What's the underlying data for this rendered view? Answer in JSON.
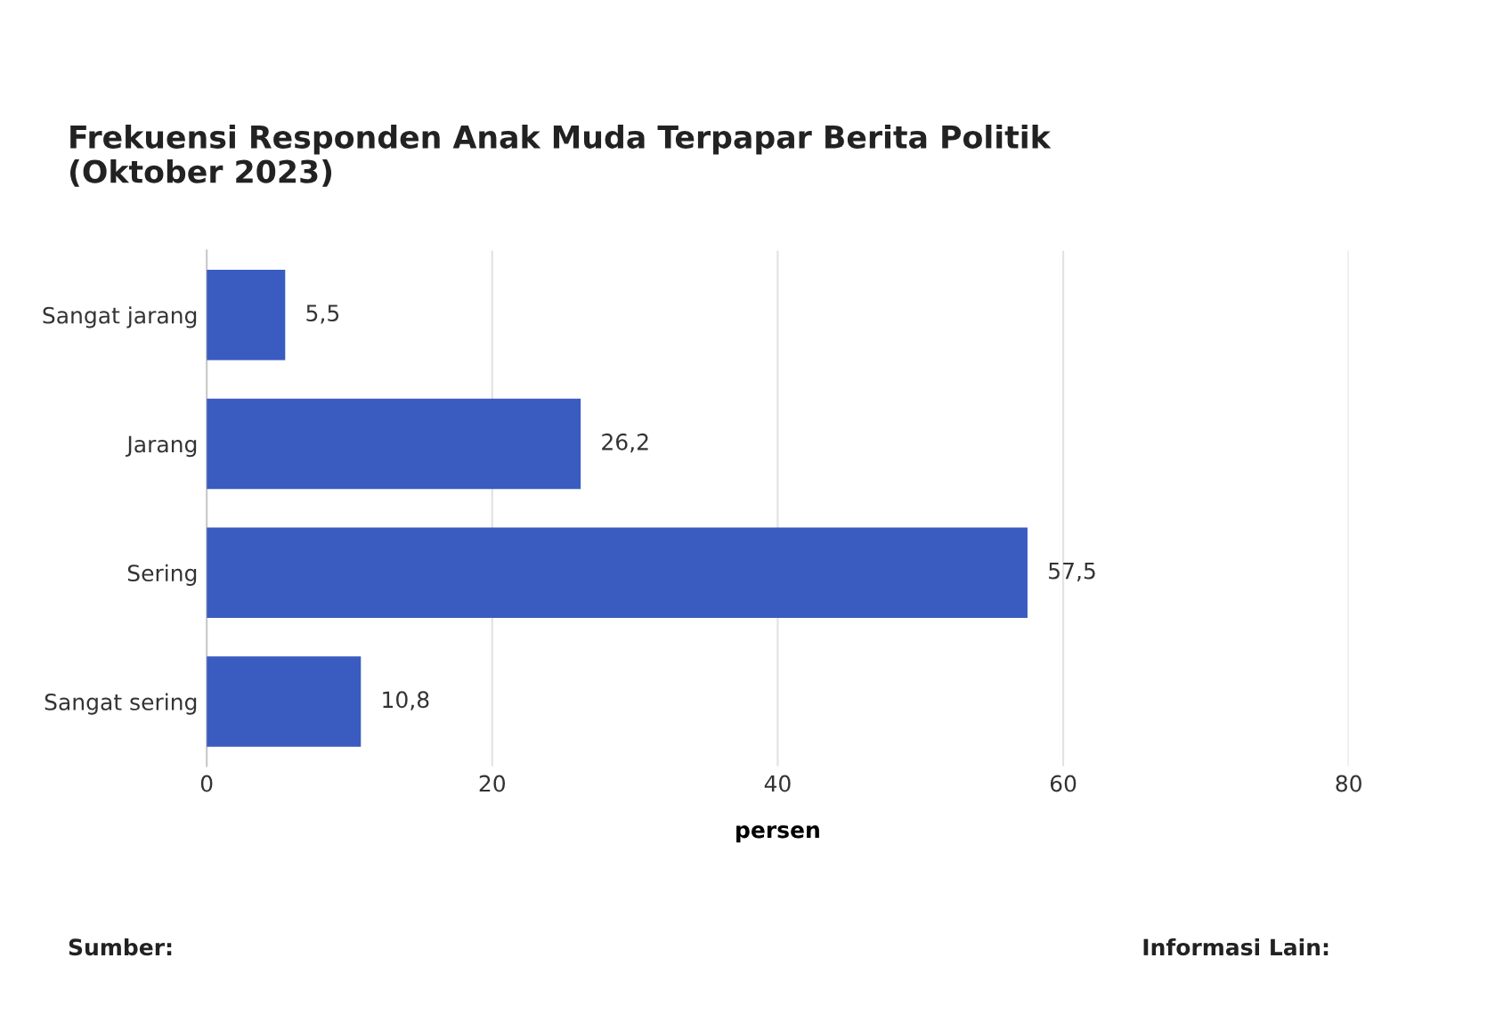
{
  "chart_data": {
    "type": "bar",
    "orientation": "horizontal",
    "title": "Frekuensi Responden Anak Muda Terpapar Berita Politik\n(Oktober 2023)",
    "xlabel": "persen",
    "categories": [
      "Sangat jarang",
      "Jarang",
      "Sering",
      "Sangat sering"
    ],
    "values": [
      5.5,
      26.2,
      57.5,
      10.8
    ],
    "value_labels": [
      "5,5",
      "26,2",
      "57,5",
      "10,8"
    ],
    "color": "#3a5bbf",
    "xlim": [
      0,
      80
    ],
    "xticks": [
      0,
      20,
      40,
      60,
      80
    ],
    "grid": "x",
    "annotations": [
      "Sumber:",
      "Informasi Lain:"
    ]
  }
}
